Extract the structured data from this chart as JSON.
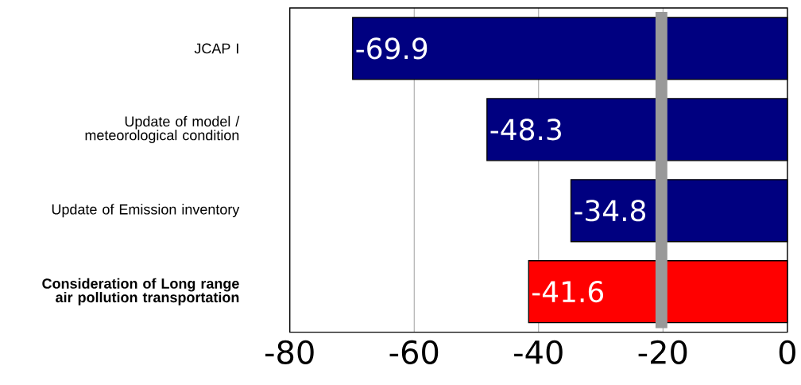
{
  "chart_data": {
    "type": "bar",
    "orientation": "horizontal",
    "categories": [
      "JCAP I",
      "Update of model / meteorological condition",
      "Update of Emission inventory",
      "**Consideration of Long range air pollution transportation**"
    ],
    "values": [
      -69.9,
      -48.3,
      -34.8,
      -41.6
    ],
    "colors": [
      "#000080",
      "#000080",
      "#000080",
      "#ff0000"
    ],
    "data_labels": true,
    "xlim": [
      -80,
      0
    ],
    "xticks": [
      -80,
      -60,
      -40,
      -20,
      0
    ],
    "grid": "x",
    "bands": [
      {
        "axis": "x",
        "from": -21.2,
        "to": -19.3,
        "color": "#999999"
      }
    ]
  }
}
